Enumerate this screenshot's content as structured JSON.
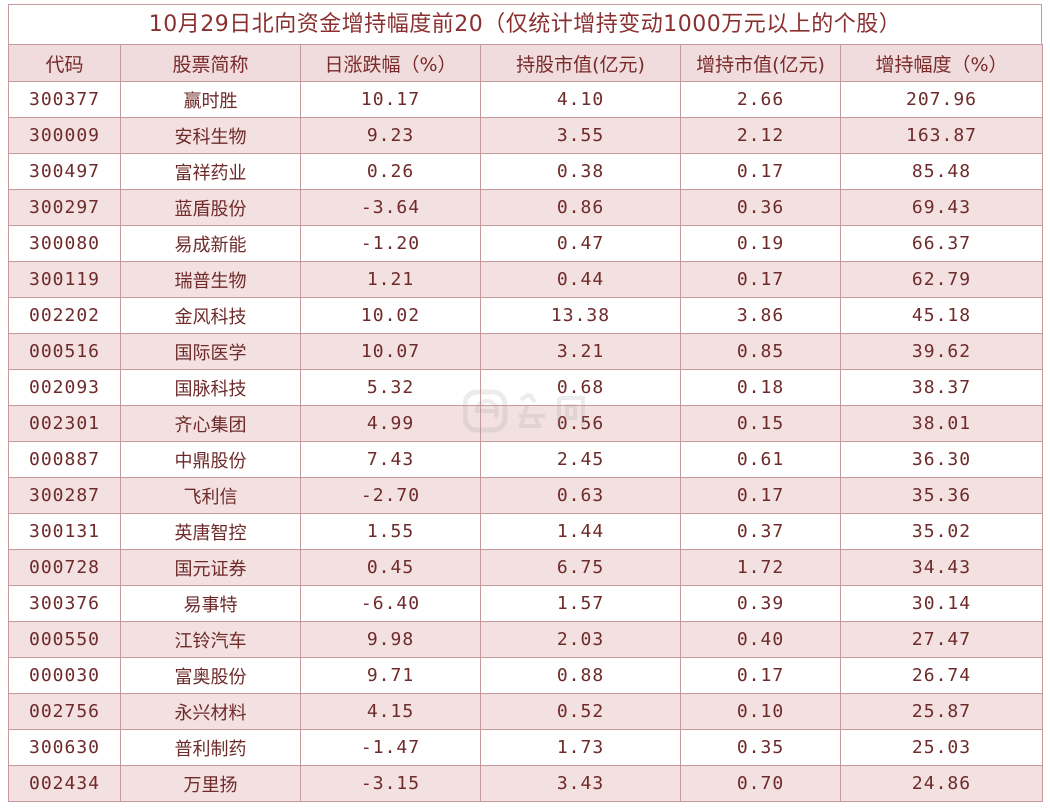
{
  "title": "10月29日北向资金增持幅度前20（仅统计增持变动1000万元以上的个股）",
  "headers": [
    "代码",
    "股票简称",
    "日涨跌幅（%）",
    "持股市值(亿元)",
    "增持市值(亿元)",
    "增持幅度（%）"
  ],
  "rows": [
    [
      "300377",
      "赢时胜",
      "10.17",
      "4.10",
      "2.66",
      "207.96"
    ],
    [
      "300009",
      "安科生物",
      "9.23",
      "3.55",
      "2.12",
      "163.87"
    ],
    [
      "300497",
      "富祥药业",
      "0.26",
      "0.38",
      "0.17",
      "85.48"
    ],
    [
      "300297",
      "蓝盾股份",
      "-3.64",
      "0.86",
      "0.36",
      "69.43"
    ],
    [
      "300080",
      "易成新能",
      "-1.20",
      "0.47",
      "0.19",
      "66.37"
    ],
    [
      "300119",
      "瑞普生物",
      "1.21",
      "0.44",
      "0.17",
      "62.79"
    ],
    [
      "002202",
      "金风科技",
      "10.02",
      "13.38",
      "3.86",
      "45.18"
    ],
    [
      "000516",
      "国际医学",
      "10.07",
      "3.21",
      "0.85",
      "39.62"
    ],
    [
      "002093",
      "国脉科技",
      "5.32",
      "0.68",
      "0.18",
      "38.37"
    ],
    [
      "002301",
      "齐心集团",
      "4.99",
      "0.56",
      "0.15",
      "38.01"
    ],
    [
      "000887",
      "中鼎股份",
      "7.43",
      "2.45",
      "0.61",
      "36.30"
    ],
    [
      "300287",
      "飞利信",
      "-2.70",
      "0.63",
      "0.17",
      "35.36"
    ],
    [
      "300131",
      "英唐智控",
      "1.55",
      "1.44",
      "0.37",
      "35.02"
    ],
    [
      "000728",
      "国元证券",
      "0.45",
      "6.75",
      "1.72",
      "34.43"
    ],
    [
      "300376",
      "易事特",
      "-6.40",
      "1.57",
      "0.39",
      "30.14"
    ],
    [
      "000550",
      "江铃汽车",
      "9.98",
      "2.03",
      "0.40",
      "27.47"
    ],
    [
      "000030",
      "富奥股份",
      "9.71",
      "0.88",
      "0.17",
      "26.74"
    ],
    [
      "002756",
      "永兴材料",
      "4.15",
      "0.52",
      "0.10",
      "25.87"
    ],
    [
      "300630",
      "普利制药",
      "-1.47",
      "1.73",
      "0.35",
      "25.03"
    ],
    [
      "002434",
      "万里扬",
      "-3.15",
      "3.43",
      "0.70",
      "24.86"
    ]
  ],
  "colors": {
    "accent": "#8b3030",
    "border": "#c69a9a",
    "header_bg": "#f0dcdc",
    "alt_row_bg": "#f3e0e0"
  }
}
